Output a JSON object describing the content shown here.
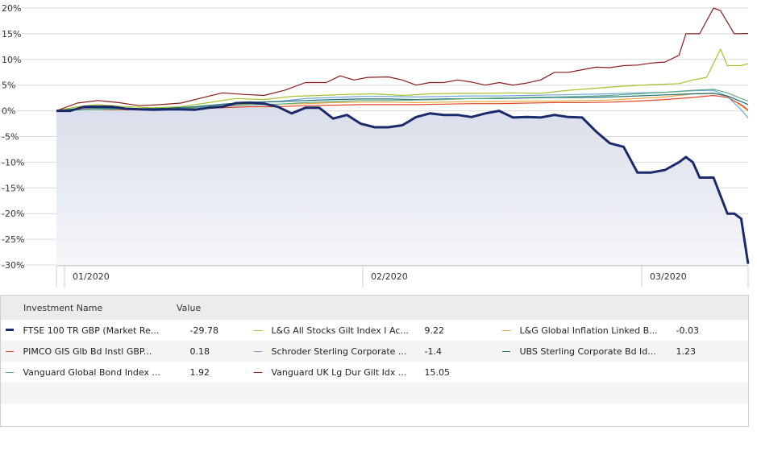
{
  "chart_data": {
    "type": "line",
    "x_ticks": [
      "01/2020",
      "02/2020",
      "03/2020"
    ],
    "y_ticks": [
      "20%",
      "15%",
      "10%",
      "5%",
      "0%",
      "-5%",
      "-10%",
      "-15%",
      "-20%",
      "-25%",
      "-30%"
    ],
    "ylim": [
      -30,
      20
    ],
    "grid": true,
    "x_index_range": [
      0,
      100
    ],
    "series": [
      {
        "name": "FTSE 100 TR GBP (Market Re...",
        "value_label": "-29.78",
        "color": "#1b2a6b",
        "emphasis": true,
        "points": [
          [
            0,
            0
          ],
          [
            2,
            0
          ],
          [
            4,
            0.8
          ],
          [
            6,
            0.8
          ],
          [
            8,
            0.8
          ],
          [
            10,
            0.4
          ],
          [
            12,
            0.3
          ],
          [
            14,
            0.2
          ],
          [
            16,
            0.3
          ],
          [
            18,
            0.3
          ],
          [
            20,
            0.2
          ],
          [
            22,
            0.6
          ],
          [
            24,
            0.8
          ],
          [
            26,
            1.5
          ],
          [
            28,
            1.6
          ],
          [
            30,
            1.4
          ],
          [
            32,
            0.8
          ],
          [
            34,
            -0.5
          ],
          [
            36,
            0.6
          ],
          [
            38,
            0.6
          ],
          [
            40,
            -1.5
          ],
          [
            42,
            -0.8
          ],
          [
            44,
            -2.5
          ],
          [
            46,
            -3.2
          ],
          [
            48,
            -3.2
          ],
          [
            50,
            -2.8
          ],
          [
            52,
            -1.2
          ],
          [
            54,
            -0.5
          ],
          [
            56,
            -0.8
          ],
          [
            58,
            -0.8
          ],
          [
            60,
            -1.2
          ],
          [
            62,
            -0.5
          ],
          [
            64,
            0
          ],
          [
            66,
            -1.3
          ],
          [
            68,
            -1.2
          ],
          [
            70,
            -1.3
          ],
          [
            72,
            -0.8
          ],
          [
            74,
            -1.2
          ],
          [
            76,
            -1.3
          ],
          [
            78,
            -4.0
          ],
          [
            80,
            -6.3
          ],
          [
            82,
            -7.0
          ],
          [
            84,
            -12.0
          ],
          [
            86,
            -12.0
          ],
          [
            88,
            -11.5
          ],
          [
            90,
            -10.0
          ],
          [
            91,
            -9.0
          ],
          [
            92,
            -10.0
          ],
          [
            93,
            -13.0
          ],
          [
            95,
            -13.0
          ],
          [
            97,
            -20.0
          ],
          [
            98,
            -20.0
          ],
          [
            99,
            -21.0
          ],
          [
            100,
            -29.78
          ]
        ]
      },
      {
        "name": "L&G All Stocks Gilt Index I Ac...",
        "value_label": "9.22",
        "color": "#a6c22e",
        "points": [
          [
            0,
            0
          ],
          [
            3,
            0.8
          ],
          [
            6,
            1.2
          ],
          [
            10,
            0.8
          ],
          [
            14,
            0.6
          ],
          [
            18,
            0.8
          ],
          [
            22,
            1.6
          ],
          [
            26,
            2.4
          ],
          [
            30,
            2.2
          ],
          [
            34,
            2.8
          ],
          [
            38,
            3.0
          ],
          [
            42,
            3.2
          ],
          [
            46,
            3.3
          ],
          [
            50,
            3.0
          ],
          [
            54,
            3.3
          ],
          [
            58,
            3.4
          ],
          [
            62,
            3.4
          ],
          [
            66,
            3.5
          ],
          [
            70,
            3.4
          ],
          [
            74,
            4.0
          ],
          [
            78,
            4.4
          ],
          [
            82,
            4.8
          ],
          [
            86,
            5.1
          ],
          [
            90,
            5.3
          ],
          [
            92,
            6.0
          ],
          [
            94,
            6.5
          ],
          [
            96,
            12.0
          ],
          [
            97,
            8.8
          ],
          [
            99,
            8.8
          ],
          [
            100,
            9.22
          ]
        ]
      },
      {
        "name": "L&G Global Inflation Linked B...",
        "value_label": "-0.03",
        "color": "#e8a93a",
        "points": [
          [
            0,
            0
          ],
          [
            4,
            0.6
          ],
          [
            8,
            0.5
          ],
          [
            12,
            0.4
          ],
          [
            16,
            0.5
          ],
          [
            20,
            0.7
          ],
          [
            24,
            1.0
          ],
          [
            28,
            1.3
          ],
          [
            32,
            1.3
          ],
          [
            36,
            1.4
          ],
          [
            40,
            1.6
          ],
          [
            44,
            1.7
          ],
          [
            48,
            1.7
          ],
          [
            52,
            1.6
          ],
          [
            56,
            1.7
          ],
          [
            60,
            1.8
          ],
          [
            64,
            1.8
          ],
          [
            68,
            1.9
          ],
          [
            72,
            1.9
          ],
          [
            76,
            2.0
          ],
          [
            80,
            2.1
          ],
          [
            84,
            2.4
          ],
          [
            88,
            2.7
          ],
          [
            92,
            3.3
          ],
          [
            95,
            3.4
          ],
          [
            97,
            2.8
          ],
          [
            99,
            1.0
          ],
          [
            100,
            -0.03
          ]
        ]
      },
      {
        "name": "PIMCO GIS Glb Bd Instl GBP...",
        "value_label": "0.18",
        "color": "#e0472a",
        "points": [
          [
            0,
            0
          ],
          [
            4,
            0.3
          ],
          [
            8,
            0.2
          ],
          [
            12,
            0.2
          ],
          [
            16,
            0.3
          ],
          [
            20,
            0.4
          ],
          [
            24,
            0.6
          ],
          [
            28,
            0.8
          ],
          [
            32,
            0.8
          ],
          [
            36,
            1.0
          ],
          [
            40,
            1.1
          ],
          [
            44,
            1.2
          ],
          [
            48,
            1.2
          ],
          [
            52,
            1.2
          ],
          [
            56,
            1.3
          ],
          [
            60,
            1.4
          ],
          [
            64,
            1.4
          ],
          [
            68,
            1.5
          ],
          [
            72,
            1.6
          ],
          [
            76,
            1.6
          ],
          [
            80,
            1.7
          ],
          [
            84,
            1.9
          ],
          [
            88,
            2.2
          ],
          [
            92,
            2.6
          ],
          [
            95,
            3.0
          ],
          [
            97,
            2.6
          ],
          [
            99,
            1.2
          ],
          [
            100,
            0.18
          ]
        ]
      },
      {
        "name": "Schroder Sterling Corporate ...",
        "value_label": "-1.4",
        "color": "#6aa3d8",
        "points": [
          [
            0,
            0
          ],
          [
            4,
            0.5
          ],
          [
            8,
            0.4
          ],
          [
            12,
            0.3
          ],
          [
            16,
            0.4
          ],
          [
            20,
            0.7
          ],
          [
            24,
            1.2
          ],
          [
            28,
            1.6
          ],
          [
            32,
            1.8
          ],
          [
            36,
            2.4
          ],
          [
            40,
            2.6
          ],
          [
            44,
            2.8
          ],
          [
            48,
            2.8
          ],
          [
            52,
            2.7
          ],
          [
            56,
            2.8
          ],
          [
            60,
            2.9
          ],
          [
            64,
            2.9
          ],
          [
            68,
            3.0
          ],
          [
            72,
            3.1
          ],
          [
            76,
            3.2
          ],
          [
            80,
            3.3
          ],
          [
            84,
            3.5
          ],
          [
            88,
            3.6
          ],
          [
            92,
            3.9
          ],
          [
            95,
            4.0
          ],
          [
            97,
            2.8
          ],
          [
            99,
            0.2
          ],
          [
            100,
            -1.4
          ]
        ]
      },
      {
        "name": "UBS Sterling Corporate Bd Id...",
        "value_label": "1.23",
        "color": "#1f6b73",
        "points": [
          [
            0,
            0
          ],
          [
            4,
            0.6
          ],
          [
            8,
            0.5
          ],
          [
            12,
            0.4
          ],
          [
            16,
            0.5
          ],
          [
            20,
            0.8
          ],
          [
            24,
            1.3
          ],
          [
            28,
            1.7
          ],
          [
            32,
            1.8
          ],
          [
            36,
            2.0
          ],
          [
            40,
            2.2
          ],
          [
            44,
            2.3
          ],
          [
            48,
            2.3
          ],
          [
            52,
            2.2
          ],
          [
            56,
            2.3
          ],
          [
            60,
            2.4
          ],
          [
            64,
            2.4
          ],
          [
            68,
            2.5
          ],
          [
            72,
            2.6
          ],
          [
            76,
            2.6
          ],
          [
            80,
            2.7
          ],
          [
            84,
            2.9
          ],
          [
            88,
            3.1
          ],
          [
            92,
            3.3
          ],
          [
            95,
            3.4
          ],
          [
            97,
            2.9
          ],
          [
            99,
            1.8
          ],
          [
            100,
            1.23
          ]
        ]
      },
      {
        "name": "Vanguard Global Bond Index ...",
        "value_label": "1.92",
        "color": "#5fae86",
        "points": [
          [
            0,
            0
          ],
          [
            4,
            0.2
          ],
          [
            8,
            0.3
          ],
          [
            12,
            0.3
          ],
          [
            16,
            0.4
          ],
          [
            20,
            0.6
          ],
          [
            24,
            0.9
          ],
          [
            28,
            1.2
          ],
          [
            32,
            1.3
          ],
          [
            36,
            1.6
          ],
          [
            40,
            1.8
          ],
          [
            44,
            2.0
          ],
          [
            48,
            2.0
          ],
          [
            52,
            2.1
          ],
          [
            56,
            2.2
          ],
          [
            60,
            2.4
          ],
          [
            64,
            2.5
          ],
          [
            68,
            2.6
          ],
          [
            72,
            2.7
          ],
          [
            76,
            2.8
          ],
          [
            80,
            3.0
          ],
          [
            84,
            3.3
          ],
          [
            88,
            3.6
          ],
          [
            92,
            4.0
          ],
          [
            95,
            4.2
          ],
          [
            97,
            3.5
          ],
          [
            99,
            2.4
          ],
          [
            100,
            1.92
          ]
        ]
      },
      {
        "name": "Vanguard UK Lg Dur Gilt Idx ...",
        "value_label": "15.05",
        "color": "#8b1a1a",
        "points": [
          [
            0,
            0
          ],
          [
            3,
            1.5
          ],
          [
            6,
            2.0
          ],
          [
            9,
            1.6
          ],
          [
            12,
            1.0
          ],
          [
            15,
            1.2
          ],
          [
            18,
            1.5
          ],
          [
            21,
            2.5
          ],
          [
            24,
            3.5
          ],
          [
            27,
            3.2
          ],
          [
            30,
            3.0
          ],
          [
            33,
            4.0
          ],
          [
            36,
            5.5
          ],
          [
            39,
            5.5
          ],
          [
            41,
            6.8
          ],
          [
            43,
            6.0
          ],
          [
            45,
            6.5
          ],
          [
            48,
            6.6
          ],
          [
            50,
            6.0
          ],
          [
            52,
            5.0
          ],
          [
            54,
            5.5
          ],
          [
            56,
            5.5
          ],
          [
            58,
            6.0
          ],
          [
            60,
            5.6
          ],
          [
            62,
            5.0
          ],
          [
            64,
            5.5
          ],
          [
            66,
            5.0
          ],
          [
            68,
            5.4
          ],
          [
            70,
            6.0
          ],
          [
            72,
            7.5
          ],
          [
            74,
            7.5
          ],
          [
            76,
            8.0
          ],
          [
            78,
            8.5
          ],
          [
            80,
            8.4
          ],
          [
            82,
            8.8
          ],
          [
            84,
            8.9
          ],
          [
            86,
            9.3
          ],
          [
            88,
            9.5
          ],
          [
            90,
            10.8
          ],
          [
            91,
            15.0
          ],
          [
            93,
            15.0
          ],
          [
            95,
            20.0
          ],
          [
            96,
            19.5
          ],
          [
            98,
            15.0
          ],
          [
            100,
            15.05
          ]
        ]
      }
    ]
  },
  "legend": {
    "header_name": "Investment Name",
    "header_value": "Value"
  }
}
